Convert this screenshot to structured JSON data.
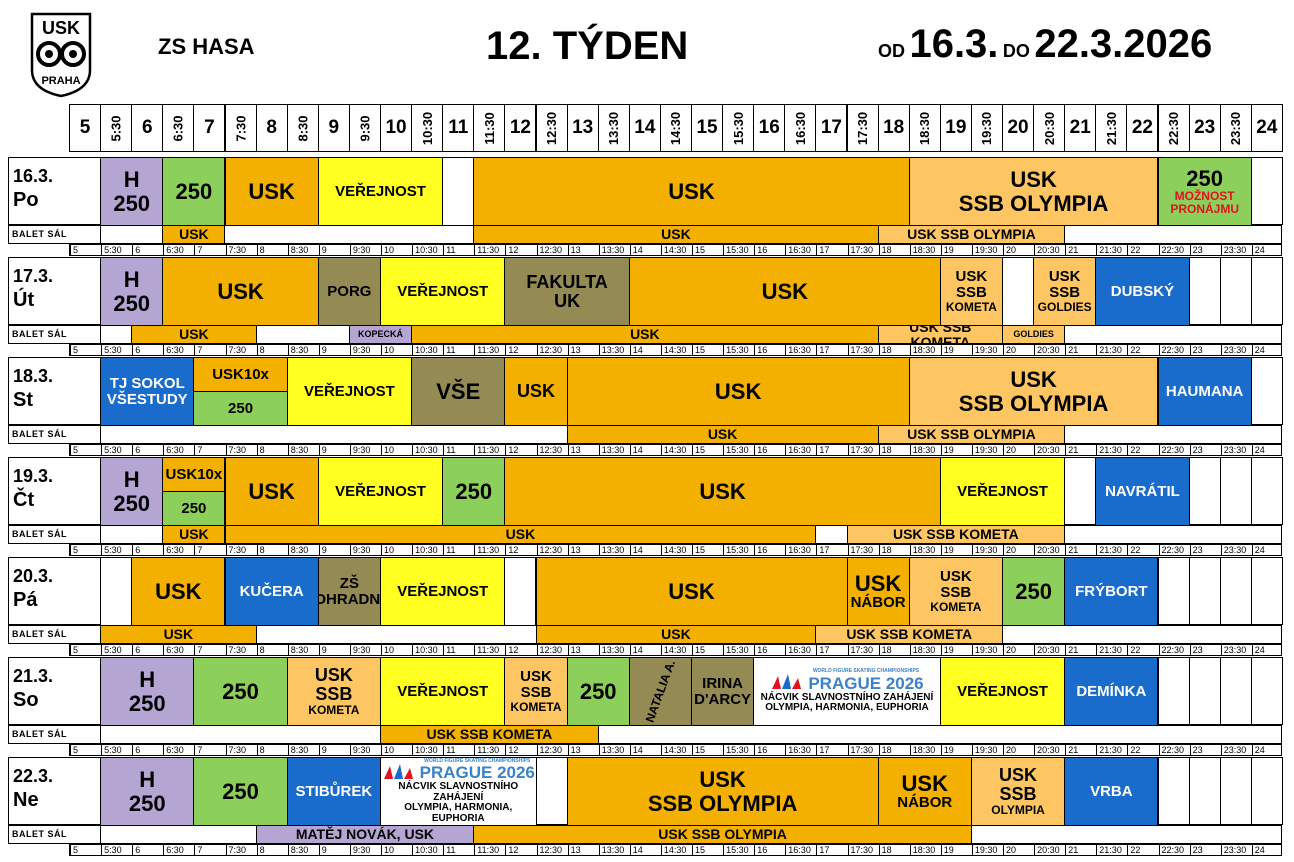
{
  "header": {
    "logo_text_top": "USK",
    "logo_text_bottom": "PRAHA",
    "site": "ZS HASA",
    "week": "12. TÝDEN",
    "from_label": "OD",
    "from_date": "16.3.",
    "to_label": "DO",
    "to_date": "22.3.2026"
  },
  "hours": [
    "5",
    "5:30",
    "6",
    "6:30",
    "7",
    "7:30",
    "8",
    "8:30",
    "9",
    "9:30",
    "10",
    "10:30",
    "11",
    "11:30",
    "12",
    "12:30",
    "13",
    "13:30",
    "14",
    "14:30",
    "15",
    "15:30",
    "16",
    "16:30",
    "17",
    "17:30",
    "18",
    "18:30",
    "19",
    "19:30",
    "20",
    "20:30",
    "21",
    "21:30",
    "22",
    "22:30",
    "23",
    "23:30",
    "24"
  ],
  "ballet_label": "BALET SÁL",
  "days": [
    {
      "date": "16.3.",
      "weekday": "Po",
      "ice": [
        {
          "s": 1,
          "e": 3,
          "c": "purple",
          "lines": [
            "H",
            "250"
          ],
          "fs": "t2"
        },
        {
          "s": 3,
          "e": 5,
          "c": "green",
          "lines": [
            "250"
          ],
          "fs": "t2"
        },
        {
          "s": 5,
          "e": 8,
          "c": "orange",
          "lines": [
            "USK"
          ],
          "fs": "t2"
        },
        {
          "s": 8,
          "e": 12,
          "c": "yellow",
          "lines": [
            "VEŘEJNOST"
          ],
          "fs": "t4"
        },
        {
          "s": 12,
          "e": 13,
          "c": "white",
          "lines": [
            ""
          ],
          "fs": "t4"
        },
        {
          "s": 13,
          "e": 27,
          "c": "orange",
          "lines": [
            "USK"
          ],
          "fs": "t2"
        },
        {
          "s": 27,
          "e": 35,
          "c": "lorange",
          "lines": [
            "USK",
            "SSB OLYMPIA"
          ],
          "fs": "t2"
        },
        {
          "s": 35,
          "e": 38,
          "c": "green",
          "lines": [
            "250",
            "MOŽNOST",
            "PRONÁJMU"
          ],
          "fs": "t2",
          "sub": "red"
        }
      ],
      "ballet": [
        {
          "s": 3,
          "e": 5,
          "c": "orange",
          "lines": [
            "USK"
          ]
        },
        {
          "s": 13,
          "e": 26,
          "c": "orange",
          "lines": [
            "USK"
          ]
        },
        {
          "s": 26,
          "e": 32,
          "c": "lorange",
          "lines": [
            "USK SSB OLYMPIA"
          ]
        }
      ]
    },
    {
      "date": "17.3.",
      "weekday": "Út",
      "ice": [
        {
          "s": 1,
          "e": 3,
          "c": "purple",
          "lines": [
            "H",
            "250"
          ],
          "fs": "t2"
        },
        {
          "s": 3,
          "e": 8,
          "c": "orange",
          "lines": [
            "USK"
          ],
          "fs": "t2"
        },
        {
          "s": 8,
          "e": 10,
          "c": "olive",
          "lines": [
            "PORG"
          ],
          "fs": "t4"
        },
        {
          "s": 10,
          "e": 14,
          "c": "yellow",
          "lines": [
            "VEŘEJNOST"
          ],
          "fs": "t4"
        },
        {
          "s": 14,
          "e": 18,
          "c": "olive",
          "lines": [
            "FAKULTA",
            "UK"
          ],
          "fs": "t3"
        },
        {
          "s": 18,
          "e": 28,
          "c": "orange",
          "lines": [
            "USK"
          ],
          "fs": "t2"
        },
        {
          "s": 28,
          "e": 30,
          "c": "lorange",
          "lines": [
            "USK",
            "SSB",
            "KOMETA"
          ],
          "fs": "t4"
        },
        {
          "s": 30,
          "e": 31,
          "c": "white",
          "lines": [
            ""
          ],
          "fs": "t4"
        },
        {
          "s": 31,
          "e": 33,
          "c": "lorange",
          "lines": [
            "USK",
            "SSB",
            "GOLDIES"
          ],
          "fs": "t4"
        },
        {
          "s": 33,
          "e": 36,
          "c": "blue",
          "lines": [
            "DUBSKÝ"
          ],
          "fs": "t4"
        }
      ],
      "ballet": [
        {
          "s": 2,
          "e": 6,
          "c": "orange",
          "lines": [
            "USK"
          ]
        },
        {
          "s": 9,
          "e": 11,
          "c": "purple",
          "lines": [
            "KOPECKÁ"
          ],
          "small": true
        },
        {
          "s": 11,
          "e": 26,
          "c": "orange",
          "lines": [
            "USK"
          ]
        },
        {
          "s": 26,
          "e": 30,
          "c": "lorange",
          "lines": [
            "USK SSB KOMETA"
          ]
        },
        {
          "s": 30,
          "e": 32,
          "c": "lorange",
          "lines": [
            "GOLDIES"
          ],
          "small": true
        }
      ]
    },
    {
      "date": "18.3.",
      "weekday": "St",
      "ice": [
        {
          "s": 1,
          "e": 4,
          "c": "blue",
          "lines": [
            "TJ SOKOL",
            "VŠESTUDY"
          ],
          "fs": "t4"
        },
        {
          "s": 4,
          "e": 7,
          "c": "orange",
          "lines": [
            "USK10x"
          ],
          "fs": "t4",
          "half": "top"
        },
        {
          "s": 4,
          "e": 7,
          "c": "green",
          "lines": [
            "250"
          ],
          "fs": "t4",
          "half": "bottom"
        },
        {
          "s": 7,
          "e": 11,
          "c": "yellow",
          "lines": [
            "VEŘEJNOST"
          ],
          "fs": "t4"
        },
        {
          "s": 11,
          "e": 14,
          "c": "olive",
          "lines": [
            "VŠE"
          ],
          "fs": "t2"
        },
        {
          "s": 14,
          "e": 16,
          "c": "orange",
          "lines": [
            "USK"
          ],
          "fs": "t3"
        },
        {
          "s": 16,
          "e": 27,
          "c": "orange",
          "lines": [
            "USK"
          ],
          "fs": "t2"
        },
        {
          "s": 27,
          "e": 35,
          "c": "lorange",
          "lines": [
            "USK",
            "SSB OLYMPIA"
          ],
          "fs": "t2"
        },
        {
          "s": 35,
          "e": 38,
          "c": "blue",
          "lines": [
            "HAUMANA"
          ],
          "fs": "t4"
        }
      ],
      "ballet": [
        {
          "s": 16,
          "e": 26,
          "c": "orange",
          "lines": [
            "USK"
          ]
        },
        {
          "s": 26,
          "e": 32,
          "c": "lorange",
          "lines": [
            "USK SSB OLYMPIA"
          ]
        }
      ]
    },
    {
      "date": "19.3.",
      "weekday": "Čt",
      "ice": [
        {
          "s": 1,
          "e": 3,
          "c": "purple",
          "lines": [
            "H",
            "250"
          ],
          "fs": "t2"
        },
        {
          "s": 3,
          "e": 5,
          "c": "orange",
          "lines": [
            "USK10x"
          ],
          "fs": "t4",
          "half": "top"
        },
        {
          "s": 3,
          "e": 5,
          "c": "green",
          "lines": [
            "250"
          ],
          "fs": "t4",
          "half": "bottom"
        },
        {
          "s": 5,
          "e": 8,
          "c": "orange",
          "lines": [
            "USK"
          ],
          "fs": "t2"
        },
        {
          "s": 8,
          "e": 12,
          "c": "yellow",
          "lines": [
            "VEŘEJNOST"
          ],
          "fs": "t4"
        },
        {
          "s": 12,
          "e": 14,
          "c": "green",
          "lines": [
            "250"
          ],
          "fs": "t2"
        },
        {
          "s": 14,
          "e": 28,
          "c": "orange",
          "lines": [
            "USK"
          ],
          "fs": "t2"
        },
        {
          "s": 28,
          "e": 32,
          "c": "yellow",
          "lines": [
            "VEŘEJNOST"
          ],
          "fs": "t4"
        },
        {
          "s": 33,
          "e": 36,
          "c": "blue",
          "lines": [
            "NAVRÁTIL"
          ],
          "fs": "t4"
        }
      ],
      "ballet": [
        {
          "s": 3,
          "e": 5,
          "c": "orange",
          "lines": [
            "USK"
          ]
        },
        {
          "s": 5,
          "e": 24,
          "c": "orange",
          "lines": [
            "USK"
          ]
        },
        {
          "s": 25,
          "e": 32,
          "c": "lorange",
          "lines": [
            "USK SSB KOMETA"
          ]
        }
      ]
    },
    {
      "date": "20.3.",
      "weekday": "Pá",
      "ice": [
        {
          "s": 1,
          "e": 2,
          "c": "white",
          "lines": [
            ""
          ],
          "fs": "t4"
        },
        {
          "s": 2,
          "e": 5,
          "c": "orange",
          "lines": [
            "USK"
          ],
          "fs": "t2"
        },
        {
          "s": 5,
          "e": 8,
          "c": "blue",
          "lines": [
            "KUČERA"
          ],
          "fs": "t4"
        },
        {
          "s": 8,
          "e": 10,
          "c": "olive",
          "lines": [
            "ZŠ",
            "OHRADNÍ"
          ],
          "fs": "t4"
        },
        {
          "s": 10,
          "e": 14,
          "c": "yellow",
          "lines": [
            "VEŘEJNOST"
          ],
          "fs": "t4"
        },
        {
          "s": 14,
          "e": 15,
          "c": "white",
          "lines": [
            ""
          ],
          "fs": "t4"
        },
        {
          "s": 15,
          "e": 25,
          "c": "orange",
          "lines": [
            "USK"
          ],
          "fs": "t2"
        },
        {
          "s": 25,
          "e": 27,
          "c": "orange",
          "lines": [
            "USK",
            "NÁBOR"
          ],
          "fs": "t2"
        },
        {
          "s": 27,
          "e": 30,
          "c": "lorange",
          "lines": [
            "USK",
            "SSB",
            "KOMETA"
          ],
          "fs": "t4"
        },
        {
          "s": 30,
          "e": 32,
          "c": "green",
          "lines": [
            "250"
          ],
          "fs": "t2"
        },
        {
          "s": 32,
          "e": 35,
          "c": "blue",
          "lines": [
            "FRÝBORT"
          ],
          "fs": "t4"
        }
      ],
      "ballet": [
        {
          "s": 1,
          "e": 6,
          "c": "orange",
          "lines": [
            "USK"
          ]
        },
        {
          "s": 15,
          "e": 24,
          "c": "orange",
          "lines": [
            "USK"
          ]
        },
        {
          "s": 24,
          "e": 30,
          "c": "lorange",
          "lines": [
            "USK SSB KOMETA"
          ]
        }
      ]
    },
    {
      "date": "21.3.",
      "weekday": "So",
      "ice": [
        {
          "s": 1,
          "e": 4,
          "c": "purple",
          "lines": [
            "H",
            "250"
          ],
          "fs": "t2"
        },
        {
          "s": 4,
          "e": 7,
          "c": "green",
          "lines": [
            "250"
          ],
          "fs": "t2"
        },
        {
          "s": 7,
          "e": 10,
          "c": "lorange",
          "lines": [
            "USK",
            "SSB",
            "KOMETA"
          ],
          "fs": "t3"
        },
        {
          "s": 10,
          "e": 14,
          "c": "yellow",
          "lines": [
            "VEŘEJNOST"
          ],
          "fs": "t4"
        },
        {
          "s": 14,
          "e": 16,
          "c": "lorange",
          "lines": [
            "USK",
            "SSB",
            "KOMETA"
          ],
          "fs": "t4"
        },
        {
          "s": 16,
          "e": 18,
          "c": "green",
          "lines": [
            "250"
          ],
          "fs": "t2"
        },
        {
          "s": 18,
          "e": 20,
          "c": "olive",
          "lines": [
            "NATALIA A."
          ],
          "fs": "t5",
          "rot": true
        },
        {
          "s": 20,
          "e": 22,
          "c": "olive",
          "lines": [
            "IRINA",
            "D'ARCY"
          ],
          "fs": "t4"
        },
        {
          "s": 22,
          "e": 28,
          "c": "white",
          "lines": [
            "NÁCVIK SLAVNOSTNÍHO ZAHÁJENÍ",
            "OLYMPIA, HARMONIA, EUPHORIA"
          ],
          "fs": "t5",
          "ptg": true
        },
        {
          "s": 28,
          "e": 32,
          "c": "yellow",
          "lines": [
            "VEŘEJNOST"
          ],
          "fs": "t4"
        },
        {
          "s": 32,
          "e": 35,
          "c": "blue",
          "lines": [
            "DEMÍNKA"
          ],
          "fs": "t4"
        }
      ],
      "ballet": [
        {
          "s": 10,
          "e": 17,
          "c": "orange",
          "lines": [
            "USK SSB KOMETA"
          ]
        }
      ]
    },
    {
      "date": "22.3.",
      "weekday": "Ne",
      "ice": [
        {
          "s": 1,
          "e": 4,
          "c": "purple",
          "lines": [
            "H",
            "250"
          ],
          "fs": "t2"
        },
        {
          "s": 4,
          "e": 7,
          "c": "green",
          "lines": [
            "250"
          ],
          "fs": "t2"
        },
        {
          "s": 7,
          "e": 10,
          "c": "blue",
          "lines": [
            "STIBŮREK"
          ],
          "fs": "t4"
        },
        {
          "s": 10,
          "e": 15,
          "c": "white",
          "lines": [
            "NÁCVIK SLAVNOSTNÍHO ZAHÁJENÍ",
            "OLYMPIA, HARMONIA, EUPHORIA"
          ],
          "fs": "t5",
          "ptg": true
        },
        {
          "s": 16,
          "e": 26,
          "c": "orange",
          "lines": [
            "USK",
            "SSB OLYMPIA"
          ],
          "fs": "t2"
        },
        {
          "s": 26,
          "e": 29,
          "c": "orange",
          "lines": [
            "USK",
            "NÁBOR"
          ],
          "fs": "t2"
        },
        {
          "s": 29,
          "e": 32,
          "c": "lorange",
          "lines": [
            "USK",
            "SSB",
            "OLYMPIA"
          ],
          "fs": "t3"
        },
        {
          "s": 32,
          "e": 35,
          "c": "blue",
          "lines": [
            "VRBA"
          ],
          "fs": "t4"
        }
      ],
      "ballet": [
        {
          "s": 6,
          "e": 13,
          "c": "purple",
          "lines": [
            "MATĚJ NOVÁK, USK"
          ]
        },
        {
          "s": 13,
          "e": 29,
          "c": "orange",
          "lines": [
            "USK SSB OLYMPIA"
          ]
        }
      ]
    }
  ],
  "prague_logo": {
    "small": "WORLD FIGURE SKATING CHAMPIONSHIPS",
    "main": "PRAGUE 2026"
  },
  "colors": {
    "orange": "#f4b000",
    "light_orange": "#fdc663",
    "purple": "#b5a5d3",
    "green": "#8dcf5b",
    "yellow": "#ffff22",
    "olive": "#948a54",
    "blue": "#1a6ccc",
    "red_text": "#e0141e"
  }
}
